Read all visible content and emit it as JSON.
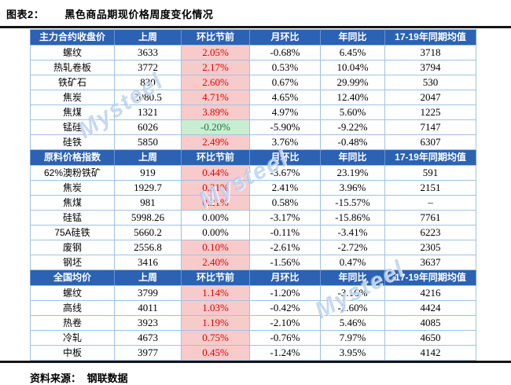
{
  "title": {
    "figure_label": "图表2：",
    "figure_title": "黑色商品期现价格周度变化情况"
  },
  "footer": {
    "source_label": "资料来源：",
    "source_value": "钢联数据"
  },
  "watermark": {
    "text": "Mysteel"
  },
  "colors": {
    "header_blue": "#2b62b4",
    "grid_line": "#9dc3e6",
    "pink_bg": "#f8cbcb",
    "red_text": "#df0000",
    "green_bg": "#c8eed2",
    "green_text": "#1e7145",
    "rule_black": "#151515",
    "watermark": "rgba(150,186,232,0.55)"
  },
  "chart_data": {
    "type": "table",
    "title": "黑色商品期现价格周度变化情况",
    "columns": [
      "上周",
      "环比节前",
      "月环比",
      "年同比",
      "17-19年同期均值"
    ],
    "sections": [
      {
        "header": "主力合约收盘价",
        "rows": [
          {
            "label": "螺纹",
            "values": [
              "3633",
              "2.05%",
              "-0.68%",
              "6.45%",
              "3718"
            ],
            "wow": "up"
          },
          {
            "label": "热轧卷板",
            "values": [
              "3772",
              "2.17%",
              "0.53%",
              "10.04%",
              "3794"
            ],
            "wow": "up"
          },
          {
            "label": "铁矿石",
            "values": [
              "830",
              "2.60%",
              "0.67%",
              "29.99%",
              "530"
            ],
            "wow": "up"
          },
          {
            "label": "焦炭",
            "values": [
              "2080.5",
              "4.71%",
              "4.65%",
              "12.40%",
              "2047"
            ],
            "wow": "up"
          },
          {
            "label": "焦煤",
            "values": [
              "1321",
              "3.89%",
              "4.97%",
              "5.60%",
              "1225"
            ],
            "wow": "up"
          },
          {
            "label": "锰硅",
            "values": [
              "6026",
              "-0.20%",
              "-5.90%",
              "-9.22%",
              "7147"
            ],
            "wow": "down"
          },
          {
            "label": "硅铁",
            "values": [
              "5850",
              "2.49%",
              "3.76%",
              "-0.48%",
              "6307"
            ],
            "wow": "up"
          }
        ]
      },
      {
        "header": "原料价格指数",
        "rows": [
          {
            "label": "62%澳粉铁矿",
            "values": [
              "919",
              "0.44%",
              "-3.67%",
              "23.19%",
              "591"
            ],
            "wow": "up"
          },
          {
            "label": "焦炭",
            "values": [
              "1929.7",
              "0.31%",
              "2.41%",
              "3.96%",
              "2151"
            ],
            "wow": "up"
          },
          {
            "label": "焦煤",
            "values": [
              "981",
              "0.21%",
              "0.58%",
              "-15.57%",
              "–"
            ],
            "wow": "up"
          },
          {
            "label": "硅锰",
            "values": [
              "5998.26",
              "0.00%",
              "-3.17%",
              "-15.86%",
              "7761"
            ],
            "wow": "flat"
          },
          {
            "label": "75A硅铁",
            "values": [
              "5660.2",
              "0.00%",
              "-0.11%",
              "-3.41%",
              "6223"
            ],
            "wow": "flat"
          },
          {
            "label": "废钢",
            "values": [
              "2556.8",
              "0.10%",
              "-2.61%",
              "-2.72%",
              "2305"
            ],
            "wow": "up"
          },
          {
            "label": "钢坯",
            "values": [
              "3416",
              "2.40%",
              "-1.56%",
              "0.47%",
              "3637"
            ],
            "wow": "up"
          }
        ]
      },
      {
        "header": "全国均价",
        "rows": [
          {
            "label": "螺纹",
            "values": [
              "3799",
              "1.14%",
              "-1.20%",
              "-3.16%",
              "4216"
            ],
            "wow": "up"
          },
          {
            "label": "高线",
            "values": [
              "4011",
              "1.03%",
              "-0.42%",
              "-2.60%",
              "4424"
            ],
            "wow": "up"
          },
          {
            "label": "热卷",
            "values": [
              "3923",
              "1.19%",
              "-2.10%",
              "5.46%",
              "4085"
            ],
            "wow": "up"
          },
          {
            "label": "冷轧",
            "values": [
              "4673",
              "0.75%",
              "-0.76%",
              "7.97%",
              "4650"
            ],
            "wow": "up"
          },
          {
            "label": "中板",
            "values": [
              "3977",
              "0.45%",
              "-1.24%",
              "3.95%",
              "4142"
            ],
            "wow": "up"
          }
        ]
      }
    ]
  }
}
